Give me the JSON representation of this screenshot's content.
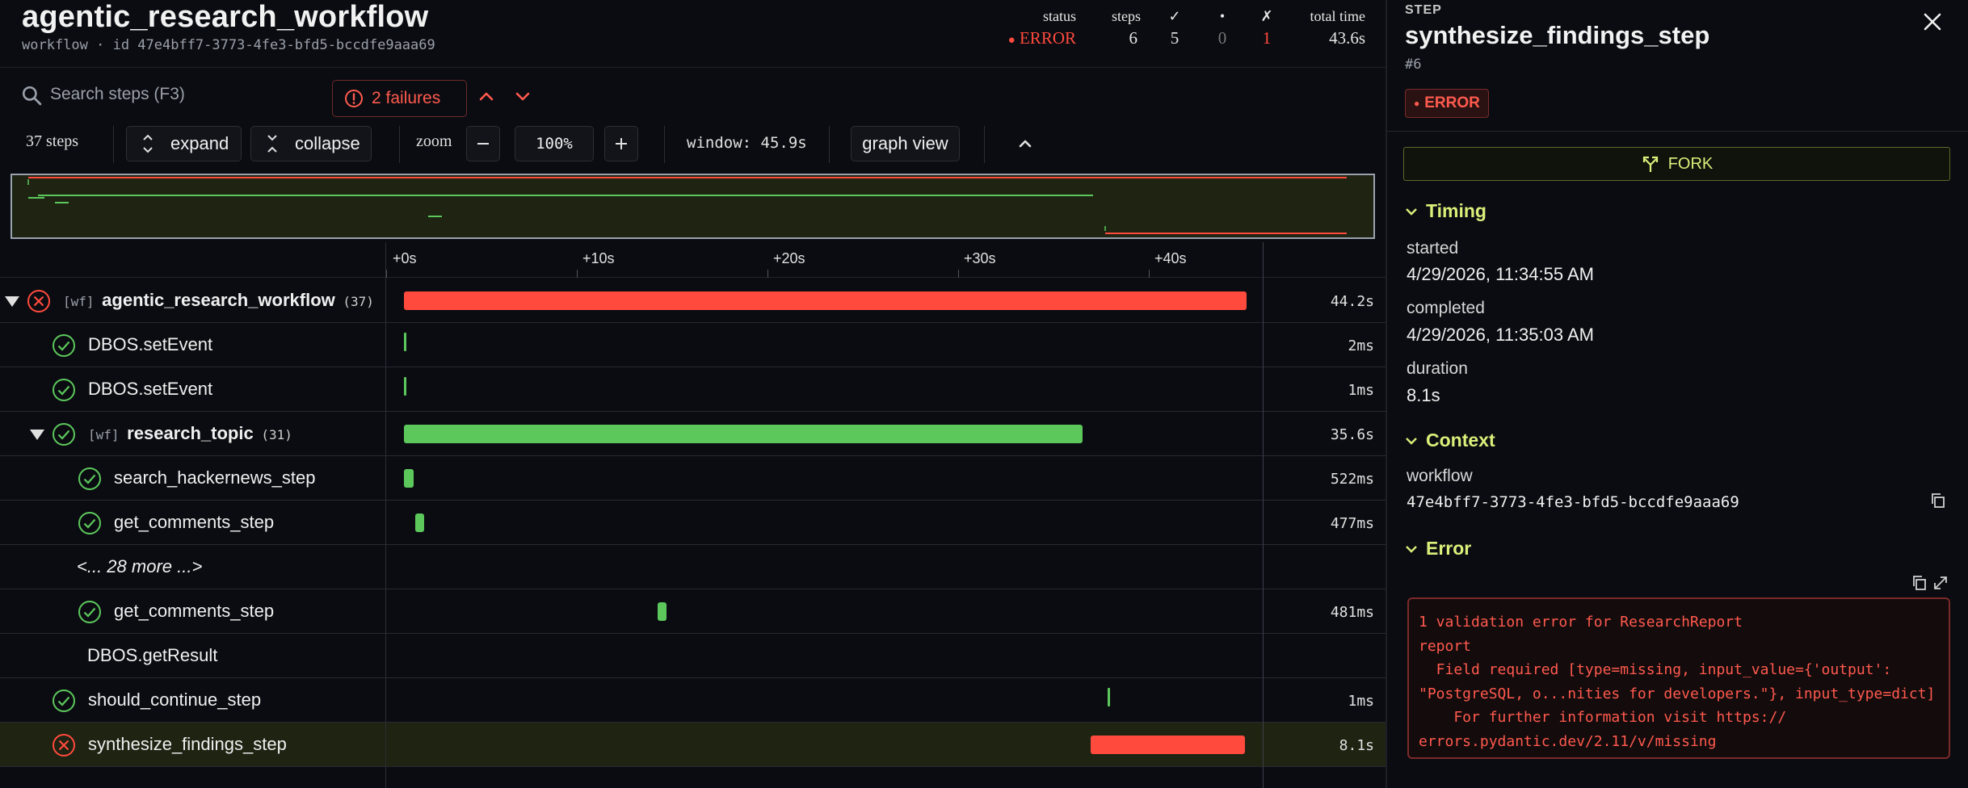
{
  "header": {
    "title": "agentic_research_workflow",
    "subtitle": "workflow · id 47e4bff7-3773-4fe3-bfd5-bccdfe9aaa69",
    "stats": {
      "status_label": "status",
      "status_value": "ERROR",
      "steps_label": "steps",
      "steps_value": "6",
      "ok_label": "✓",
      "ok_value": "5",
      "pending_label": "•",
      "pending_value": "0",
      "fail_label": "✗",
      "fail_value": "1",
      "total_label": "total time",
      "total_value": "43.6s"
    }
  },
  "search": {
    "placeholder": "Search steps (F3)"
  },
  "failures": {
    "label": "2 failures"
  },
  "toolbar": {
    "step_count": "37 steps",
    "expand_label": "expand",
    "collapse_label": "collapse",
    "zoom_label": "zoom",
    "zoom_value": "100%",
    "window_label": "window: 45.9s",
    "graph_label": "graph view"
  },
  "axis": {
    "ticks": [
      "+0s",
      "+10s",
      "+20s",
      "+30s",
      "+40s"
    ]
  },
  "rows": [
    {
      "name": "agentic_research_workflow",
      "tag": "[wf]",
      "count": "(37)",
      "status": "error",
      "duration": "44.2s",
      "start_s": 0.0,
      "length_s": 44.2,
      "indent": 0,
      "expandable": true,
      "bold": true
    },
    {
      "name": "DBOS.setEvent",
      "status": "ok",
      "duration": "2ms",
      "start_s": 0.0,
      "length_s": 0.002,
      "indent": 1
    },
    {
      "name": "DBOS.setEvent",
      "status": "ok",
      "duration": "1ms",
      "start_s": 0.0,
      "length_s": 0.001,
      "indent": 1
    },
    {
      "name": "research_topic",
      "tag": "[wf]",
      "count": "(31)",
      "status": "ok",
      "duration": "35.6s",
      "start_s": 0.0,
      "length_s": 35.6,
      "indent": 1,
      "expandable": true,
      "bold": true
    },
    {
      "name": "search_hackernews_step",
      "status": "ok",
      "duration": "522ms",
      "start_s": 0.0,
      "length_s": 0.522,
      "indent": 2
    },
    {
      "name": "get_comments_step",
      "status": "ok",
      "duration": "477ms",
      "start_s": 0.6,
      "length_s": 0.477,
      "indent": 2
    },
    {
      "name": "<... 28 more ...>",
      "status": "none",
      "duration": "",
      "indent": 2,
      "italic": true
    },
    {
      "name": "get_comments_step",
      "status": "ok",
      "duration": "481ms",
      "start_s": 13.3,
      "length_s": 0.481,
      "indent": 2
    },
    {
      "name": "DBOS.getResult",
      "status": "none",
      "duration": "",
      "indent": 1
    },
    {
      "name": "should_continue_step",
      "status": "ok",
      "duration": "1ms",
      "start_s": 36.9,
      "length_s": 0.001,
      "indent": 1
    },
    {
      "name": "synthesize_findings_step",
      "status": "error",
      "duration": "8.1s",
      "start_s": 36.0,
      "length_s": 8.1,
      "indent": 1,
      "selected": true
    }
  ],
  "panel": {
    "label": "STEP",
    "title": "synthesize_findings_step",
    "number": "#6",
    "badge": "ERROR",
    "fork_label": "FORK",
    "timing_header": "Timing",
    "started_label": "started",
    "started_value": "4/29/2026, 11:34:55 AM",
    "completed_label": "completed",
    "completed_value": "4/29/2026, 11:35:03 AM",
    "duration_label": "duration",
    "duration_value": "8.1s",
    "context_header": "Context",
    "workflow_label": "workflow",
    "workflow_value": "47e4bff7-3773-4fe3-bfd5-bccdfe9aaa69",
    "error_header": "Error",
    "error_text": "1 validation error for ResearchReport\nreport\n  Field required [type=missing, input_value={'output':\n\"PostgreSQL, o...nities for developers.\"}, input_type=dict]\n    For further information visit https://\nerrors.pydantic.dev/2.11/v/missing"
  },
  "colors": {
    "error": "#ff4a3d",
    "ok": "#5cc85c",
    "accent": "#d9f07a",
    "background": "#0b0c11"
  }
}
